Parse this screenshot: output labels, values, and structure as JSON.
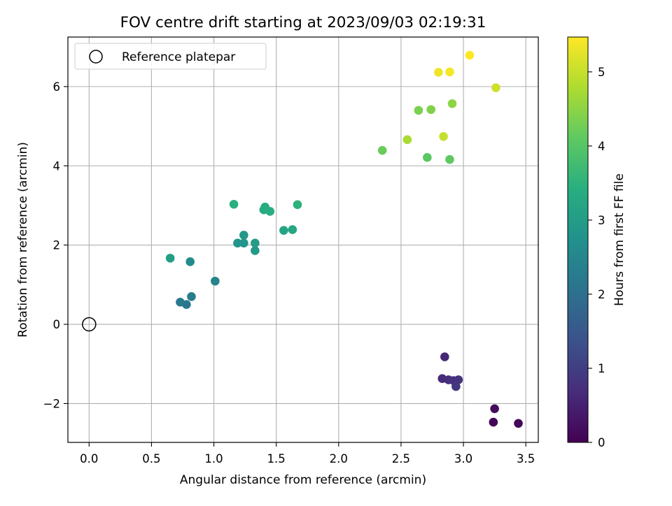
{
  "chart_data": {
    "type": "scatter",
    "title": "FOV centre drift starting at 2023/09/03 02:19:31",
    "xlabel": "Angular distance from reference (arcmin)",
    "ylabel": "Rotation from reference (arcmin)",
    "xlim": [
      -0.17,
      3.6
    ],
    "ylim": [
      -2.98,
      7.25
    ],
    "xticks": [
      0.0,
      0.5,
      1.0,
      1.5,
      2.0,
      2.5,
      3.0,
      3.5
    ],
    "xtick_labels": [
      "0.0",
      "0.5",
      "1.0",
      "1.5",
      "2.0",
      "2.5",
      "3.0",
      "3.5"
    ],
    "yticks": [
      -2,
      0,
      2,
      4,
      6
    ],
    "ytick_labels": [
      "−2",
      "0",
      "2",
      "4",
      "6"
    ],
    "grid": true,
    "legend": {
      "position": "top-left",
      "entries": [
        {
          "label": "Reference platepar",
          "marker": "open-circle"
        }
      ]
    },
    "colorbar": {
      "label": "Hours from first FF file",
      "colormap": "viridis",
      "range": [
        0,
        5.47
      ],
      "ticks": [
        0,
        1,
        2,
        3,
        4,
        5
      ],
      "tick_labels": [
        "0",
        "1",
        "2",
        "3",
        "4",
        "5"
      ]
    },
    "reference_point": {
      "x": 0.0,
      "y": 0.0
    },
    "series": [
      {
        "points": [
          {
            "x": 3.24,
            "y": -2.47,
            "c": 0.05
          },
          {
            "x": 3.44,
            "y": -2.5,
            "c": 0.1
          },
          {
            "x": 3.25,
            "y": -2.13,
            "c": 0.15
          },
          {
            "x": 2.85,
            "y": -0.82,
            "c": 0.6
          },
          {
            "x": 2.83,
            "y": -1.37,
            "c": 0.65
          },
          {
            "x": 2.88,
            "y": -1.4,
            "c": 0.7
          },
          {
            "x": 2.92,
            "y": -1.42,
            "c": 0.75
          },
          {
            "x": 2.96,
            "y": -1.4,
            "c": 0.8
          },
          {
            "x": 2.94,
            "y": -1.57,
            "c": 0.85
          },
          {
            "x": 0.78,
            "y": 0.5,
            "c": 2.15
          },
          {
            "x": 0.73,
            "y": 0.56,
            "c": 2.2
          },
          {
            "x": 0.82,
            "y": 0.7,
            "c": 2.3
          },
          {
            "x": 1.01,
            "y": 1.09,
            "c": 2.45
          },
          {
            "x": 0.81,
            "y": 1.58,
            "c": 2.6
          },
          {
            "x": 1.19,
            "y": 2.05,
            "c": 2.8
          },
          {
            "x": 1.24,
            "y": 2.05,
            "c": 2.85
          },
          {
            "x": 1.24,
            "y": 2.25,
            "c": 2.9
          },
          {
            "x": 1.33,
            "y": 1.86,
            "c": 2.95
          },
          {
            "x": 1.33,
            "y": 2.05,
            "c": 3.0
          },
          {
            "x": 0.65,
            "y": 1.67,
            "c": 3.05
          },
          {
            "x": 1.56,
            "y": 2.37,
            "c": 3.2
          },
          {
            "x": 1.63,
            "y": 2.39,
            "c": 3.25
          },
          {
            "x": 1.4,
            "y": 2.89,
            "c": 3.3
          },
          {
            "x": 1.41,
            "y": 2.96,
            "c": 3.35
          },
          {
            "x": 1.45,
            "y": 2.85,
            "c": 3.4
          },
          {
            "x": 1.16,
            "y": 3.03,
            "c": 3.45
          },
          {
            "x": 1.67,
            "y": 3.02,
            "c": 3.5
          },
          {
            "x": 2.71,
            "y": 4.21,
            "c": 4.05
          },
          {
            "x": 2.89,
            "y": 4.16,
            "c": 4.1
          },
          {
            "x": 2.35,
            "y": 4.39,
            "c": 4.2
          },
          {
            "x": 2.64,
            "y": 5.4,
            "c": 4.35
          },
          {
            "x": 2.74,
            "y": 5.42,
            "c": 4.4
          },
          {
            "x": 2.91,
            "y": 5.57,
            "c": 4.5
          },
          {
            "x": 2.55,
            "y": 4.66,
            "c": 4.75
          },
          {
            "x": 2.84,
            "y": 4.74,
            "c": 5.0
          },
          {
            "x": 3.26,
            "y": 5.97,
            "c": 5.05
          },
          {
            "x": 2.8,
            "y": 6.36,
            "c": 5.35
          },
          {
            "x": 2.89,
            "y": 6.37,
            "c": 5.4
          },
          {
            "x": 3.05,
            "y": 6.79,
            "c": 5.47
          }
        ]
      }
    ]
  }
}
